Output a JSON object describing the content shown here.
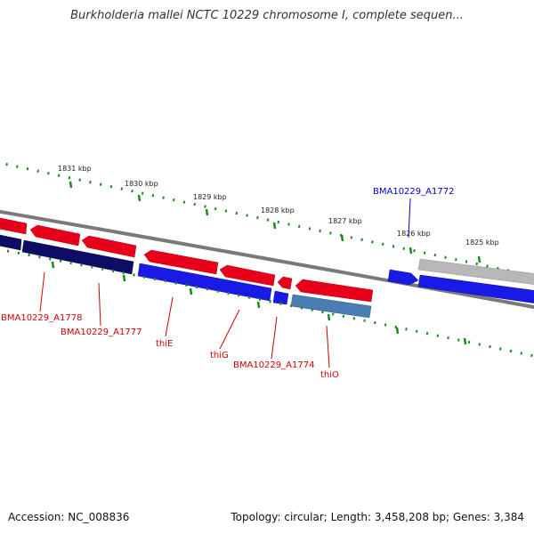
{
  "title": "Burkholderia mallei NCTC 10229 chromosome I, complete sequen...",
  "footer": {
    "accession": "Accession: NC_008836",
    "summary": "Topology: circular; Length: 3,458,208 bp; Genes: 3,384"
  },
  "colors": {
    "forward_gene": "#e8001a",
    "reverse_gene": "#1a1ae6",
    "reverse_gene_dark": "#0d0d66",
    "reverse_gene_steel": "#4a7db3",
    "other_gene": "#b8b8b8",
    "backbone": "#7a7a7a",
    "tick": "#1a8a1a",
    "label_forward": "#cc0000",
    "label_reverse": "#0000cc"
  },
  "kbp_labels": [
    "1831 kbp",
    "1830 kbp",
    "1829 kbp",
    "1828 kbp",
    "1827 kbp",
    "1826 kbp",
    "1825 kbp"
  ],
  "gene_labels": [
    {
      "text": "BMA10229_A1772",
      "strand": "reverse"
    },
    {
      "text": "BMA10229_A1778",
      "strand": "forward"
    },
    {
      "text": "BMA10229_A1777",
      "strand": "forward"
    },
    {
      "text": "thiE",
      "strand": "forward"
    },
    {
      "text": "thiG",
      "strand": "forward"
    },
    {
      "text": "BMA10229_A1774",
      "strand": "forward"
    },
    {
      "text": "thiO",
      "strand": "forward"
    }
  ]
}
